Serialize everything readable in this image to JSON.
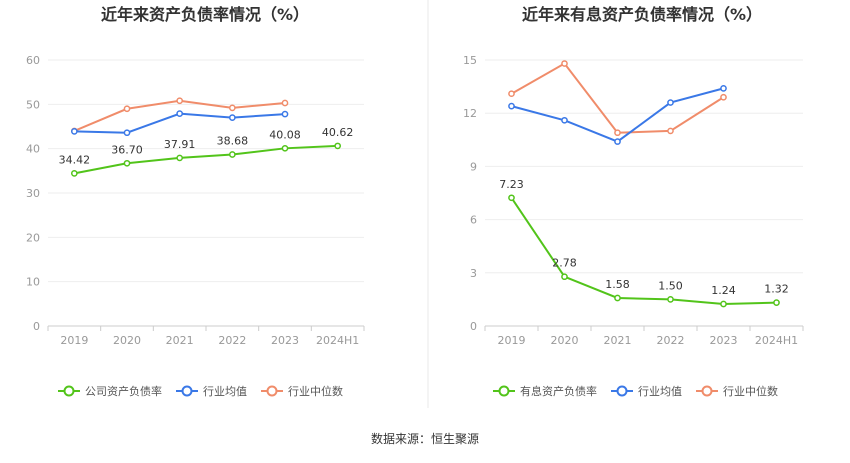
{
  "footer": "数据来源：恒生聚源",
  "chart_data": [
    {
      "type": "line",
      "title": "近年来资产负债率情况（%）",
      "categories": [
        "2019",
        "2020",
        "2021",
        "2022",
        "2023",
        "2024H1"
      ],
      "ylim": [
        0,
        60
      ],
      "yticks": [
        0,
        10,
        20,
        30,
        40,
        50,
        60
      ],
      "grid": true,
      "legend_position": "bottom",
      "series": [
        {
          "name": "公司资产负债率",
          "color": "#52c41a",
          "values": [
            34.42,
            36.7,
            37.91,
            38.68,
            40.08,
            40.62
          ],
          "labels": [
            "34.42",
            "36.70",
            "37.91",
            "38.68",
            "40.08",
            "40.62"
          ]
        },
        {
          "name": "行业均值",
          "color": "#3a78e7",
          "values": [
            43.9,
            43.6,
            47.9,
            47.0,
            47.8,
            null
          ]
        },
        {
          "name": "行业中位数",
          "color": "#f08c6a",
          "values": [
            44.0,
            49.0,
            50.8,
            49.2,
            50.3,
            null
          ]
        }
      ]
    },
    {
      "type": "line",
      "title": "近年来有息资产负债率情况（%）",
      "categories": [
        "2019",
        "2020",
        "2021",
        "2022",
        "2023",
        "2024H1"
      ],
      "ylim": [
        0,
        15
      ],
      "yticks": [
        0,
        3,
        6,
        9,
        12,
        15
      ],
      "grid": true,
      "legend_position": "bottom",
      "series": [
        {
          "name": "有息资产负债率",
          "color": "#52c41a",
          "values": [
            7.23,
            2.78,
            1.58,
            1.5,
            1.24,
            1.32
          ],
          "labels": [
            "7.23",
            "2.78",
            "1.58",
            "1.50",
            "1.24",
            "1.32"
          ]
        },
        {
          "name": "行业均值",
          "color": "#3a78e7",
          "values": [
            12.4,
            11.6,
            10.4,
            12.6,
            13.4,
            null
          ]
        },
        {
          "name": "行业中位数",
          "color": "#f08c6a",
          "values": [
            13.1,
            14.8,
            10.9,
            11.0,
            12.9,
            null
          ]
        }
      ]
    }
  ]
}
